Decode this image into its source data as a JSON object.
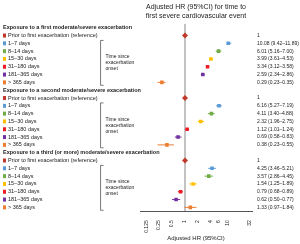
{
  "chart_data": {
    "type": "forest",
    "title": [
      "Adjusted HR (95%CI) for time to",
      "first severe cardiovascular event"
    ],
    "xlabel": "Adjusted HR (95%CI)",
    "log": "x",
    "xlim": [
      0.09,
      36
    ],
    "xticks": [
      0.125,
      0.25,
      0.5,
      1,
      2,
      4,
      6,
      10,
      32
    ],
    "grid": false,
    "reference_line": 1,
    "sections": [
      {
        "title": "Exposure to a first moderate/severe exacerbation",
        "annotation": "Time since\nexacerbation\nonset",
        "categories": [
          "Prior to first exacerbation (reference)",
          "1–7 days",
          "8–14 days",
          "15–30 days",
          "31–180 days",
          "181–365 days",
          "> 365 days"
        ],
        "values": [
          1.0,
          10.08,
          6.01,
          3.99,
          3.34,
          2.59,
          0.29
        ],
        "ci_low": [
          1.0,
          9.42,
          5.16,
          3.61,
          3.12,
          2.34,
          0.23
        ],
        "ci_high": [
          1.0,
          11.89,
          7.0,
          4.53,
          3.58,
          2.86,
          0.35
        ],
        "value_labels": [
          "1",
          "10.08 (9.42–11.89)",
          "6.01 (5.16–7.00)",
          "3.99 (3.61–4.53)",
          "3.34 (3.12–3.58)",
          "2.59 (2.34–2.86)",
          "0.29 (0.23–0.35)"
        ],
        "colors": [
          "#c0392b",
          "#5b9bd5",
          "#70ad47",
          "#ffc000",
          "#ed1c24",
          "#7030a0",
          "#ed7d31"
        ],
        "markers": [
          "diamond",
          "square",
          "square",
          "square",
          "square",
          "square",
          "square"
        ]
      },
      {
        "title": "Exposure to a second moderate/severe exacerbation",
        "annotation": "Time since\nexacerbation\nonset",
        "categories": [
          "Prior to first exacerbation (reference)",
          "1–7 days",
          "8–14 days",
          "15–30 days",
          "31–180 days",
          "181–365 days",
          "> 365 days"
        ],
        "values": [
          1.0,
          6.16,
          4.11,
          2.32,
          1.12,
          0.69,
          0.38
        ],
        "ci_low": [
          1.0,
          5.27,
          3.4,
          1.96,
          1.01,
          0.58,
          0.23
        ],
        "ci_high": [
          1.0,
          7.19,
          4.88,
          2.75,
          1.24,
          0.83,
          0.55
        ],
        "value_labels": [
          "1",
          "6.16 (5.27–7.19)",
          "4.11 (3.40–4.88)",
          "2.32 (1.96–2.75)",
          "1.12 (1.01–1.24)",
          "0.69 (0.58–0.83)",
          "0.38 (0.23–0.55)"
        ],
        "colors": [
          "#c0392b",
          "#5b9bd5",
          "#70ad47",
          "#ffc000",
          "#ed1c24",
          "#7030a0",
          "#ed7d31"
        ],
        "markers": [
          "diamond",
          "square",
          "square",
          "square",
          "square",
          "square",
          "square"
        ]
      },
      {
        "title": "Exposure to a third (or more) moderate/severe exacerbation",
        "annotation": "Time since\nexacerbation\nonset",
        "categories": [
          "Prior to first exacerbation (reference)",
          "1–7 days",
          "8–14 days",
          "15–30 days",
          "31–180 days",
          "181–365 days",
          "> 365 days"
        ],
        "values": [
          1.0,
          4.25,
          3.57,
          1.54,
          0.79,
          0.62,
          1.33
        ],
        "ci_low": [
          1.0,
          3.46,
          2.86,
          1.25,
          0.68,
          0.5,
          0.97
        ],
        "ci_high": [
          1.0,
          5.21,
          4.45,
          1.89,
          0.89,
          0.77,
          1.84
        ],
        "value_labels": [
          "1",
          "4.25 (3.46–5.21)",
          "3.57 (2.86–4.45)",
          "1.54 (1.25–1.89)",
          "0.79 (0.68–0.89)",
          "0.62 (0.50–0.77)",
          "1.33 (0.97–1.84)"
        ],
        "colors": [
          "#c0392b",
          "#5b9bd5",
          "#70ad47",
          "#ffc000",
          "#ed1c24",
          "#7030a0",
          "#ed7d31"
        ],
        "markers": [
          "diamond",
          "square",
          "square",
          "square",
          "square",
          "square",
          "square"
        ]
      }
    ]
  }
}
